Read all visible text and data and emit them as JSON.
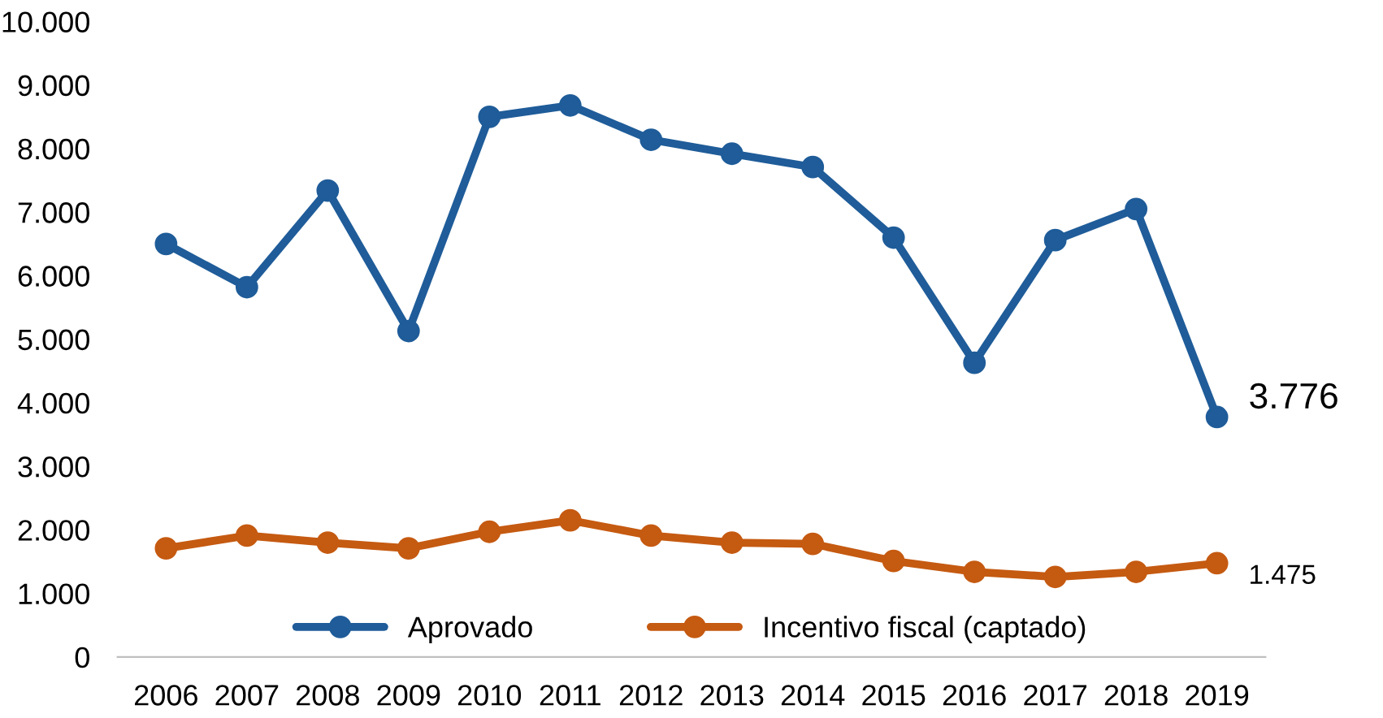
{
  "chart_data": {
    "type": "line",
    "categories": [
      "2006",
      "2007",
      "2008",
      "2009",
      "2010",
      "2011",
      "2012",
      "2013",
      "2014",
      "2015",
      "2016",
      "2017",
      "2018",
      "2019"
    ],
    "series": [
      {
        "name": "Aprovado",
        "color": "#1f5c99",
        "values": [
          6500,
          5820,
          7340,
          5130,
          8500,
          8680,
          8140,
          7920,
          7710,
          6600,
          4630,
          6560,
          7050,
          3776
        ],
        "value_labels": [
          null,
          null,
          null,
          null,
          null,
          null,
          null,
          null,
          null,
          null,
          null,
          null,
          null,
          "3.776"
        ]
      },
      {
        "name": "Incentivo fiscal (captado)",
        "color": "#c55a11",
        "values": [
          1710,
          1910,
          1800,
          1710,
          1970,
          2150,
          1910,
          1800,
          1780,
          1510,
          1340,
          1260,
          1340,
          1475
        ],
        "value_labels": [
          null,
          null,
          null,
          null,
          null,
          null,
          null,
          null,
          null,
          null,
          null,
          null,
          null,
          "1.475"
        ]
      }
    ],
    "ylim": [
      0,
      10000
    ],
    "yticks": [
      0,
      {
        "value": 1000,
        "label": "1.000"
      },
      {
        "value": 2000,
        "label": "2.000"
      },
      {
        "value": 3000,
        "label": "3.000"
      },
      {
        "value": 4000,
        "label": "4.000"
      },
      {
        "value": 5000,
        "label": "5.000"
      },
      {
        "value": 6000,
        "label": "6.000"
      },
      {
        "value": 7000,
        "label": "7.000"
      },
      {
        "value": 8000,
        "label": "8.000"
      },
      {
        "value": 9000,
        "label": "9.000"
      },
      {
        "value": 10000,
        "label": "10.000"
      }
    ],
    "grid": false,
    "legend": "bottom",
    "marker": "circle",
    "line_style": "solid"
  }
}
